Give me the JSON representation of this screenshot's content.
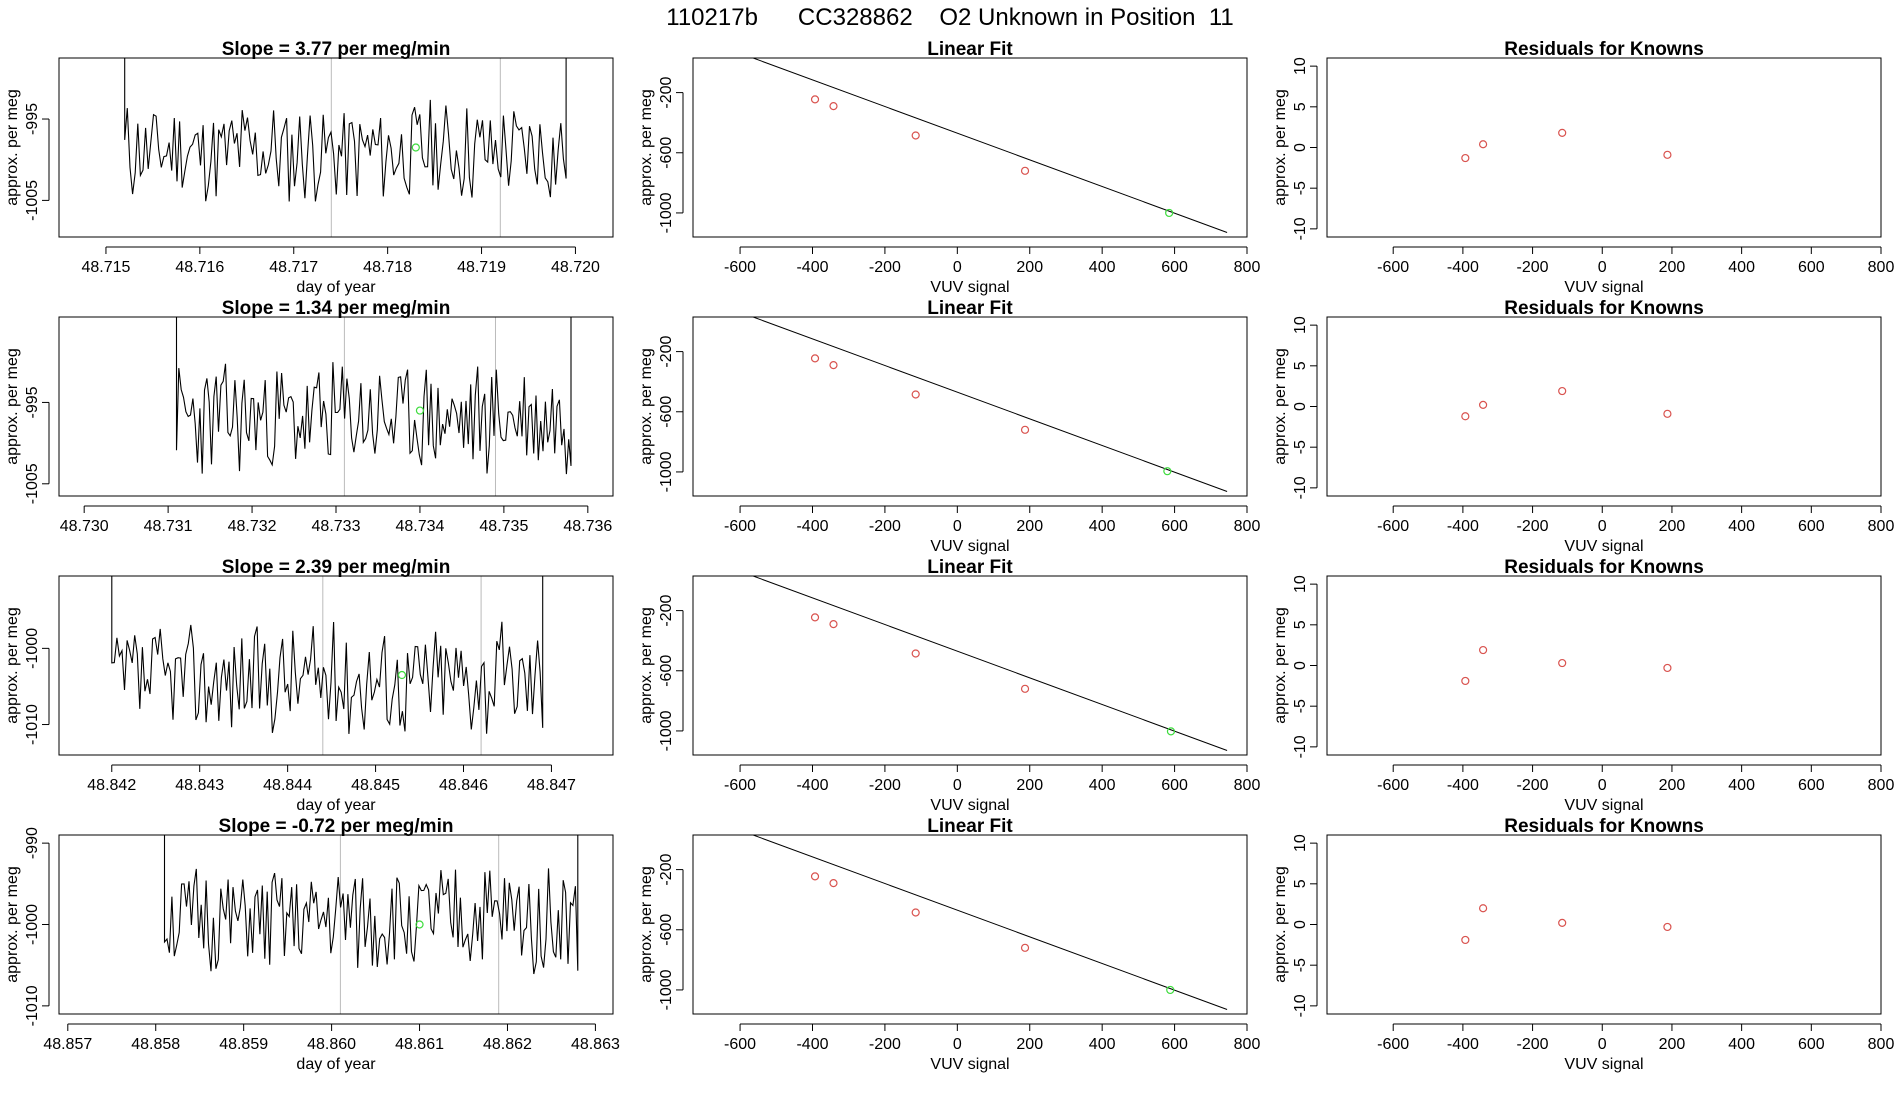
{
  "title": "110217b      CC328862    O2 Unknown in Position  11",
  "colors": {
    "known": "#d9534f",
    "unknown": "#3ddc3d",
    "line": "#000000",
    "grid": "#bbbbbb"
  },
  "chart_data": [
    {
      "type": "line",
      "title": "Slope =  3.77  per meg/min",
      "xlabel": "day of year",
      "ylabel": "approx. per meg",
      "xlim": [
        48.7145,
        48.7204
      ],
      "ylim": [
        -1009.5,
        -987.5
      ],
      "xticks": [
        "48.715",
        "48.716",
        "48.717",
        "48.718",
        "48.719",
        "48.720"
      ],
      "xtick_values": [
        48.715,
        48.716,
        48.717,
        48.718,
        48.719,
        48.72
      ],
      "yticks": [
        "-995",
        "-1005"
      ],
      "ytick_values": [
        -995,
        -1005
      ],
      "vlines": [
        48.7174,
        48.7192
      ],
      "unknown_point": {
        "x": 48.7183,
        "y": -998.5
      },
      "trace": {
        "start": 48.7152,
        "end": 48.7199,
        "n": 170,
        "center": -999,
        "amp": 6,
        "seed": 11
      }
    },
    {
      "type": "scatter",
      "title": "Linear Fit",
      "xlabel": "VUV signal",
      "ylabel": "approx. per meg",
      "xlim": [
        -730,
        800
      ],
      "ylim": [
        -1160,
        30
      ],
      "xticks": [
        "-600",
        "-400",
        "-200",
        "0",
        "200",
        "400",
        "600",
        "800"
      ],
      "xtick_values": [
        -600,
        -400,
        -200,
        0,
        200,
        400,
        600,
        800
      ],
      "yticks": [
        "-200",
        "-600",
        "-1000"
      ],
      "ytick_values": [
        -200,
        -600,
        -1000
      ],
      "line": {
        "x1": -660,
        "y1": 115,
        "x2": 745,
        "y2": -1130
      },
      "knowns": [
        {
          "x": -393,
          "y": -245
        },
        {
          "x": -342,
          "y": -290
        },
        {
          "x": -115,
          "y": -485
        },
        {
          "x": 187,
          "y": -720
        }
      ],
      "unknown": {
        "x": 585,
        "y": -1000
      }
    },
    {
      "type": "scatter",
      "title": "Residuals for Knowns",
      "xlabel": "VUV signal",
      "ylabel": "approx. per meg",
      "xlim": [
        -790,
        800
      ],
      "ylim": [
        -11,
        11
      ],
      "xticks": [
        "-600",
        "-400",
        "-200",
        "0",
        "200",
        "400",
        "600",
        "800"
      ],
      "xtick_values": [
        -600,
        -400,
        -200,
        0,
        200,
        400,
        600,
        800
      ],
      "yticks": [
        "10",
        "5",
        "0",
        "-5",
        "-10"
      ],
      "ytick_values": [
        10,
        5,
        0,
        -5,
        -10
      ],
      "knowns": [
        {
          "x": -393,
          "y": -1.3
        },
        {
          "x": -342,
          "y": 0.4
        },
        {
          "x": -115,
          "y": 1.8
        },
        {
          "x": 187,
          "y": -0.9
        }
      ]
    },
    {
      "type": "line",
      "title": "Slope =  1.34  per meg/min",
      "xlabel": "",
      "ylabel": "approx. per meg",
      "xlim": [
        48.7297,
        48.7363
      ],
      "ylim": [
        -1006.5,
        -984.5
      ],
      "xticks": [
        "48.730",
        "48.731",
        "48.732",
        "48.733",
        "48.734",
        "48.735",
        "48.736"
      ],
      "xtick_values": [
        48.73,
        48.731,
        48.732,
        48.733,
        48.734,
        48.735,
        48.736
      ],
      "yticks": [
        "-995",
        "-1005"
      ],
      "ytick_values": [
        -995,
        -1005
      ],
      "vlines": [
        48.7331,
        48.7349
      ],
      "unknown_point": {
        "x": 48.734,
        "y": -996
      },
      "trace": {
        "start": 48.7311,
        "end": 48.7358,
        "n": 170,
        "center": -997,
        "amp": 6.5,
        "seed": 23
      }
    },
    {
      "type": "scatter",
      "title": "Linear Fit",
      "xlabel": "VUV signal",
      "ylabel": "approx. per meg",
      "xlim": [
        -730,
        800
      ],
      "ylim": [
        -1160,
        30
      ],
      "xticks": [
        "-600",
        "-400",
        "-200",
        "0",
        "200",
        "400",
        "600",
        "800"
      ],
      "xtick_values": [
        -600,
        -400,
        -200,
        0,
        200,
        400,
        600,
        800
      ],
      "yticks": [
        "-200",
        "-600",
        "-1000"
      ],
      "ytick_values": [
        -200,
        -600,
        -1000
      ],
      "line": {
        "x1": -660,
        "y1": 115,
        "x2": 745,
        "y2": -1130
      },
      "knowns": [
        {
          "x": -393,
          "y": -245
        },
        {
          "x": -342,
          "y": -290
        },
        {
          "x": -115,
          "y": -485
        },
        {
          "x": 187,
          "y": -720
        }
      ],
      "unknown": {
        "x": 580,
        "y": -995
      }
    },
    {
      "type": "scatter",
      "title": "Residuals for Knowns",
      "xlabel": "VUV signal",
      "ylabel": "approx. per meg",
      "xlim": [
        -790,
        800
      ],
      "ylim": [
        -11,
        11
      ],
      "xticks": [
        "-600",
        "-400",
        "-200",
        "0",
        "200",
        "400",
        "600",
        "800"
      ],
      "xtick_values": [
        -600,
        -400,
        -200,
        0,
        200,
        400,
        600,
        800
      ],
      "yticks": [
        "10",
        "5",
        "0",
        "-5",
        "-10"
      ],
      "ytick_values": [
        10,
        5,
        0,
        -5,
        -10
      ],
      "knowns": [
        {
          "x": -393,
          "y": -1.2
        },
        {
          "x": -342,
          "y": 0.2
        },
        {
          "x": -115,
          "y": 1.9
        },
        {
          "x": 187,
          "y": -0.9
        }
      ]
    },
    {
      "type": "line",
      "title": "Slope =  2.39  per meg/min",
      "xlabel": "day of year",
      "ylabel": "approx. per meg",
      "xlim": [
        48.8414,
        48.8477
      ],
      "ylim": [
        -1014,
        -990.5
      ],
      "xticks": [
        "48.842",
        "48.843",
        "48.844",
        "48.845",
        "48.846",
        "48.847"
      ],
      "xtick_values": [
        48.842,
        48.843,
        48.844,
        48.845,
        48.846,
        48.847
      ],
      "yticks": [
        "-1000",
        "-1010"
      ],
      "ytick_values": [
        -1000,
        -1010
      ],
      "vlines": [
        48.8444,
        48.8462
      ],
      "unknown_point": {
        "x": 48.8453,
        "y": -1003.5
      },
      "trace": {
        "start": 48.842,
        "end": 48.8469,
        "n": 170,
        "center": -1004,
        "amp": 7,
        "seed": 37
      }
    },
    {
      "type": "scatter",
      "title": "Linear Fit",
      "xlabel": "VUV signal",
      "ylabel": "approx. per meg",
      "xlim": [
        -730,
        800
      ],
      "ylim": [
        -1160,
        30
      ],
      "xticks": [
        "-600",
        "-400",
        "-200",
        "0",
        "200",
        "400",
        "600",
        "800"
      ],
      "xtick_values": [
        -600,
        -400,
        -200,
        0,
        200,
        400,
        600,
        800
      ],
      "yticks": [
        "-200",
        "-600",
        "-1000"
      ],
      "ytick_values": [
        -200,
        -600,
        -1000
      ],
      "line": {
        "x1": -660,
        "y1": 115,
        "x2": 745,
        "y2": -1130
      },
      "knowns": [
        {
          "x": -393,
          "y": -245
        },
        {
          "x": -342,
          "y": -290
        },
        {
          "x": -115,
          "y": -485
        },
        {
          "x": 187,
          "y": -720
        }
      ],
      "unknown": {
        "x": 590,
        "y": -1003
      }
    },
    {
      "type": "scatter",
      "title": "Residuals for Knowns",
      "xlabel": "VUV signal",
      "ylabel": "approx. per meg",
      "xlim": [
        -790,
        800
      ],
      "ylim": [
        -11,
        11
      ],
      "xticks": [
        "-600",
        "-400",
        "-200",
        "0",
        "200",
        "400",
        "600",
        "800"
      ],
      "xtick_values": [
        -600,
        -400,
        -200,
        0,
        200,
        400,
        600,
        800
      ],
      "yticks": [
        "10",
        "5",
        "0",
        "-5",
        "-10"
      ],
      "ytick_values": [
        10,
        5,
        0,
        -5,
        -10
      ],
      "knowns": [
        {
          "x": -393,
          "y": -1.9
        },
        {
          "x": -342,
          "y": 1.9
        },
        {
          "x": -115,
          "y": 0.3
        },
        {
          "x": 187,
          "y": -0.3
        }
      ]
    },
    {
      "type": "line",
      "title": "Slope =  -0.72  per meg/min",
      "xlabel": "day of year",
      "ylabel": "approx. per meg",
      "xlim": [
        48.8569,
        48.8632
      ],
      "ylim": [
        -1011,
        -989
      ],
      "xticks": [
        "48.857",
        "48.858",
        "48.859",
        "48.860",
        "48.861",
        "48.862",
        "48.863"
      ],
      "xtick_values": [
        48.857,
        48.858,
        48.859,
        48.86,
        48.861,
        48.862,
        48.863
      ],
      "yticks": [
        "-990",
        "-1000",
        "-1010"
      ],
      "ytick_values": [
        -990,
        -1000,
        -1010
      ],
      "vlines": [
        48.8601,
        48.8619
      ],
      "unknown_point": {
        "x": 48.861,
        "y": -1000
      },
      "trace": {
        "start": 48.8581,
        "end": 48.8628,
        "n": 170,
        "center": -999.5,
        "amp": 6.5,
        "seed": 51
      }
    },
    {
      "type": "scatter",
      "title": "Linear Fit",
      "xlabel": "VUV signal",
      "ylabel": "approx. per meg",
      "xlim": [
        -730,
        800
      ],
      "ylim": [
        -1160,
        30
      ],
      "xticks": [
        "-600",
        "-400",
        "-200",
        "0",
        "200",
        "400",
        "600",
        "800"
      ],
      "xtick_values": [
        -600,
        -400,
        -200,
        0,
        200,
        400,
        600,
        800
      ],
      "yticks": [
        "-200",
        "-600",
        "-1000"
      ],
      "ytick_values": [
        -200,
        -600,
        -1000
      ],
      "line": {
        "x1": -660,
        "y1": 115,
        "x2": 745,
        "y2": -1130
      },
      "knowns": [
        {
          "x": -393,
          "y": -245
        },
        {
          "x": -342,
          "y": -290
        },
        {
          "x": -115,
          "y": -485
        },
        {
          "x": 187,
          "y": -720
        }
      ],
      "unknown": {
        "x": 588,
        "y": -1000
      }
    },
    {
      "type": "scatter",
      "title": "Residuals for Knowns",
      "xlabel": "VUV signal",
      "ylabel": "approx. per meg",
      "xlim": [
        -790,
        800
      ],
      "ylim": [
        -11,
        11
      ],
      "xticks": [
        "-600",
        "-400",
        "-200",
        "0",
        "200",
        "400",
        "600",
        "800"
      ],
      "xtick_values": [
        -600,
        -400,
        -200,
        0,
        200,
        400,
        600,
        800
      ],
      "yticks": [
        "10",
        "5",
        "0",
        "-5",
        "-10"
      ],
      "ytick_values": [
        10,
        5,
        0,
        -5,
        -10
      ],
      "knowns": [
        {
          "x": -393,
          "y": -1.9
        },
        {
          "x": -342,
          "y": 2.0
        },
        {
          "x": -115,
          "y": 0.2
        },
        {
          "x": 187,
          "y": -0.3
        }
      ]
    }
  ]
}
